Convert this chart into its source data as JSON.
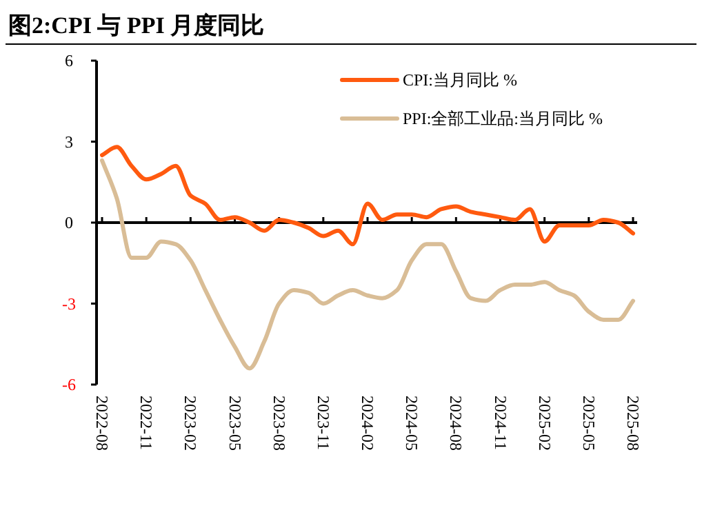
{
  "chart_data": {
    "type": "line",
    "title": "图2:CPI 与 PPI 月度同比",
    "categories": [
      "2022-08",
      null,
      null,
      "2022-11",
      null,
      null,
      "2023-02",
      null,
      null,
      "2023-05",
      null,
      null,
      "2023-08",
      null,
      null,
      "2023-11",
      null,
      null,
      "2024-02",
      null,
      null,
      "2024-05",
      null,
      null,
      "2024-08",
      null,
      null,
      "2024-11",
      null,
      null,
      "2025-02",
      null,
      null,
      "2025-05",
      null,
      null,
      "2025-08"
    ],
    "series": [
      {
        "name": "CPI:当月同比 %",
        "color": "#ff5a0f",
        "values": [
          2.5,
          2.8,
          2.1,
          1.6,
          1.8,
          2.1,
          1.0,
          0.7,
          0.1,
          0.2,
          0.0,
          -0.3,
          0.1,
          0.0,
          -0.2,
          -0.5,
          -0.3,
          -0.8,
          0.7,
          0.1,
          0.3,
          0.3,
          0.2,
          0.5,
          0.6,
          0.4,
          0.3,
          0.2,
          0.1,
          0.5,
          -0.7,
          -0.1,
          -0.1,
          -0.1,
          0.1,
          0.0,
          -0.4
        ]
      },
      {
        "name": "PPI:全部工业品:当月同比 %",
        "color": "#d9bd96",
        "values": [
          2.3,
          0.9,
          -1.3,
          -1.3,
          -0.7,
          -0.8,
          -1.4,
          -2.5,
          -3.6,
          -4.6,
          -5.4,
          -4.4,
          -3.0,
          -2.5,
          -2.6,
          -3.0,
          -2.7,
          -2.5,
          -2.7,
          -2.8,
          -2.5,
          -1.4,
          -0.8,
          -0.8,
          -1.8,
          -2.8,
          -2.9,
          -2.5,
          -2.3,
          -2.3,
          -2.2,
          -2.5,
          -2.7,
          -3.3,
          -3.6,
          -3.6,
          -2.9
        ]
      }
    ],
    "ylim": [
      -6,
      6
    ],
    "yticks": [
      -6,
      -3,
      0,
      3,
      6
    ],
    "legend": "top right",
    "line_style": "solid",
    "marker": "none"
  }
}
